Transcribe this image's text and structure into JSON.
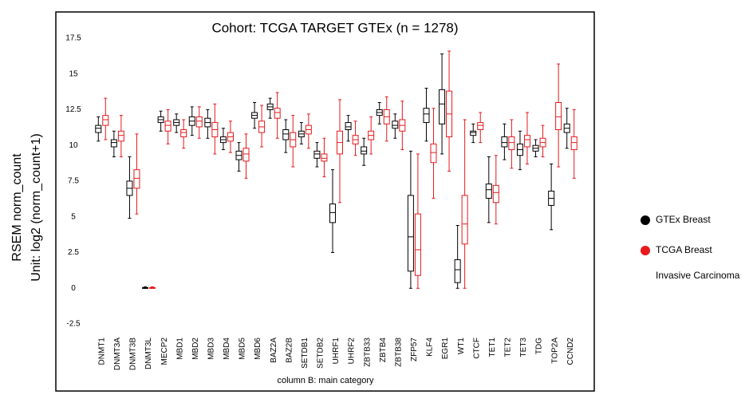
{
  "chart_data": {
    "type": "box",
    "title": "Cohort: TCGA TARGET GTEx (n = 1278)",
    "ylabel": [
      "RSEM norm_count",
      "Unit: log2 (norm_count+1)"
    ],
    "xlabel": "column B: main category",
    "ylim": [
      -3,
      18.5
    ],
    "yticks": [
      17.5,
      15,
      12.5,
      10,
      7.5,
      5,
      2.5,
      0,
      -2.5
    ],
    "grid": false,
    "categories": [
      "DNMT1",
      "DNMT3A",
      "DNMT3B",
      "DNMT3L",
      "MECP2",
      "MBD1",
      "MBD2",
      "MBD3",
      "MBD4",
      "MBD5",
      "MBD6",
      "BAZ2A",
      "BAZ2B",
      "SETDB1",
      "SETDB2",
      "UHRF1",
      "UHRF2",
      "ZBTB33",
      "ZBTB4",
      "ZBTB38",
      "ZFP57",
      "KLF4",
      "EGR1",
      "WT1",
      "CTCF",
      "TET1",
      "TET2",
      "TET3",
      "TDG",
      "TOP2A",
      "CCND2"
    ],
    "series": [
      {
        "name": "GTEx Breast",
        "color": "#000000",
        "min": [
          10.3,
          9.2,
          4.9,
          0,
          11,
          10.9,
          10.7,
          10.5,
          9.7,
          8.2,
          11.2,
          11.9,
          9.5,
          10.1,
          8.5,
          2.5,
          10.3,
          8.6,
          11.5,
          10.5,
          0,
          10.3,
          9.4,
          0,
          10.2,
          4.6,
          9,
          8.3,
          9.2,
          4.1,
          9.8
        ],
        "q1": [
          10.9,
          9.9,
          6.5,
          0,
          11.6,
          11.4,
          11.4,
          11.3,
          10.2,
          9,
          11.9,
          12.5,
          10.4,
          10.6,
          9.1,
          4.6,
          11.1,
          9.4,
          12.1,
          11.2,
          1.2,
          11.6,
          11.5,
          0.4,
          10.7,
          6.3,
          9.9,
          9.3,
          9.6,
          5.8,
          10.9
        ],
        "median": [
          11.2,
          10.2,
          7,
          0,
          11.8,
          11.6,
          11.7,
          11.6,
          10.4,
          9.3,
          12.1,
          12.7,
          10.8,
          10.8,
          9.4,
          5.3,
          11.3,
          9.6,
          12.3,
          11.4,
          3.6,
          12.2,
          12.9,
          1.3,
          10.9,
          6.9,
          10.2,
          9.7,
          9.8,
          6.3,
          11.2
        ],
        "q3": [
          11.4,
          10.4,
          7.5,
          0.05,
          12,
          11.8,
          12,
          11.9,
          10.6,
          9.6,
          12.3,
          12.9,
          11.1,
          11,
          9.6,
          5.9,
          11.6,
          9.9,
          12.5,
          11.7,
          6.5,
          12.6,
          13.9,
          2,
          11,
          7.3,
          10.6,
          10.1,
          10,
          6.8,
          11.5
        ],
        "max": [
          12,
          11,
          9.2,
          0.1,
          12.4,
          12.2,
          12.7,
          12.5,
          11.2,
          10.2,
          13,
          13.3,
          11.8,
          11.6,
          10.2,
          8.3,
          12.1,
          10.5,
          13,
          12.2,
          9.6,
          14,
          16.4,
          4.4,
          11.5,
          9.2,
          11.5,
          11,
          10.4,
          8.7,
          12.6
        ]
      },
      {
        "name": "TCGA Breast Invasive Carcinoma",
        "color": "#e8191c",
        "min": [
          10.4,
          9.2,
          5.2,
          0,
          10.1,
          9.8,
          10.5,
          9.4,
          9.5,
          7.7,
          9.9,
          10.5,
          8.5,
          9.8,
          7.8,
          6,
          9.3,
          9.4,
          10.3,
          9.7,
          0,
          6.3,
          8.2,
          0,
          10.2,
          4.5,
          8.4,
          8.7,
          9.2,
          8.5,
          7.7
        ],
        "q1": [
          11.4,
          10.3,
          7,
          0,
          11,
          10.6,
          11.3,
          10.6,
          10.3,
          8.9,
          10.9,
          11.9,
          9.9,
          10.8,
          8.9,
          9.4,
          10.1,
          10.4,
          11.5,
          11,
          0.9,
          8.8,
          10.6,
          3.1,
          11.1,
          6,
          9.7,
          9.9,
          9.9,
          11.1,
          9.7
        ],
        "median": [
          11.8,
          10.7,
          7.7,
          0,
          11.4,
          10.9,
          11.7,
          11.1,
          10.6,
          9.4,
          11.3,
          12.3,
          10.4,
          11.1,
          9.1,
          10.2,
          10.4,
          10.7,
          12,
          11.4,
          2.7,
          9.5,
          12.2,
          4.5,
          11.4,
          6.7,
          10.2,
          10.4,
          10.2,
          12,
          10.2
        ],
        "q3": [
          12.1,
          11,
          8.3,
          0.05,
          11.7,
          11.1,
          12,
          11.6,
          10.9,
          9.8,
          11.7,
          12.6,
          10.9,
          11.4,
          9.4,
          11,
          10.7,
          11,
          12.5,
          11.8,
          5.2,
          10.1,
          13.8,
          6.5,
          11.6,
          7.2,
          10.6,
          10.7,
          10.5,
          13,
          10.6
        ],
        "max": [
          13.3,
          12.1,
          10.8,
          0.1,
          12.5,
          11.8,
          12.7,
          12.9,
          11.7,
          10.8,
          12.8,
          13.7,
          12.1,
          12.2,
          10.5,
          13.2,
          11.7,
          12,
          13.4,
          13.1,
          9.4,
          12.6,
          16.6,
          11.8,
          12.3,
          9.3,
          11.8,
          12.3,
          11.4,
          15.7,
          12.5
        ]
      }
    ]
  }
}
